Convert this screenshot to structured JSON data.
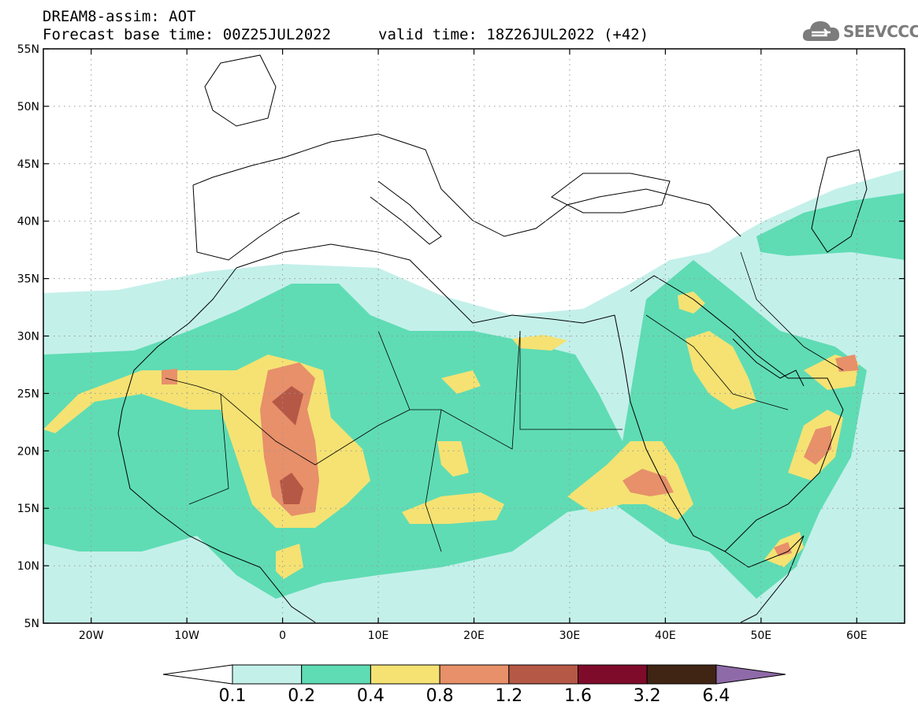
{
  "header": {
    "model_line": "DREAM8-assim: AOT",
    "base_time": "Forecast base time: 00Z25JUL2022",
    "valid_time": "valid time: 18Z26JUL2022 (+42)"
  },
  "logo": {
    "text": "SEEVCCC",
    "icon": "cloud-logo-icon"
  },
  "map": {
    "lon_range": [
      -25,
      65
    ],
    "lat_range": [
      5,
      55
    ],
    "lat_ticks": [
      {
        "v": 55,
        "label": "55N"
      },
      {
        "v": 50,
        "label": "50N"
      },
      {
        "v": 45,
        "label": "45N"
      },
      {
        "v": 40,
        "label": "40N"
      },
      {
        "v": 35,
        "label": "35N"
      },
      {
        "v": 30,
        "label": "30N"
      },
      {
        "v": 25,
        "label": "25N"
      },
      {
        "v": 20,
        "label": "20N"
      },
      {
        "v": 15,
        "label": "15N"
      },
      {
        "v": 10,
        "label": "10N"
      },
      {
        "v": 5,
        "label": "5N"
      }
    ],
    "lon_ticks": [
      {
        "v": -20,
        "label": "20W"
      },
      {
        "v": -10,
        "label": "10W"
      },
      {
        "v": 0,
        "label": "0"
      },
      {
        "v": 10,
        "label": "10E"
      },
      {
        "v": 20,
        "label": "20E"
      },
      {
        "v": 30,
        "label": "30E"
      },
      {
        "v": 40,
        "label": "40E"
      },
      {
        "v": 50,
        "label": "50E"
      },
      {
        "v": 60,
        "label": "60E"
      }
    ],
    "grid": "dotted"
  },
  "colorbar": {
    "labels": [
      "0.1",
      "0.2",
      "0.4",
      "0.8",
      "1.2",
      "1.6",
      "3.2",
      "6.4"
    ],
    "colors": [
      "#ffffff",
      "#c4f0ea",
      "#5fdcb4",
      "#f5e273",
      "#e7906a",
      "#b65846",
      "#7f0b2b",
      "#402515",
      "#8f6aa8"
    ]
  }
}
